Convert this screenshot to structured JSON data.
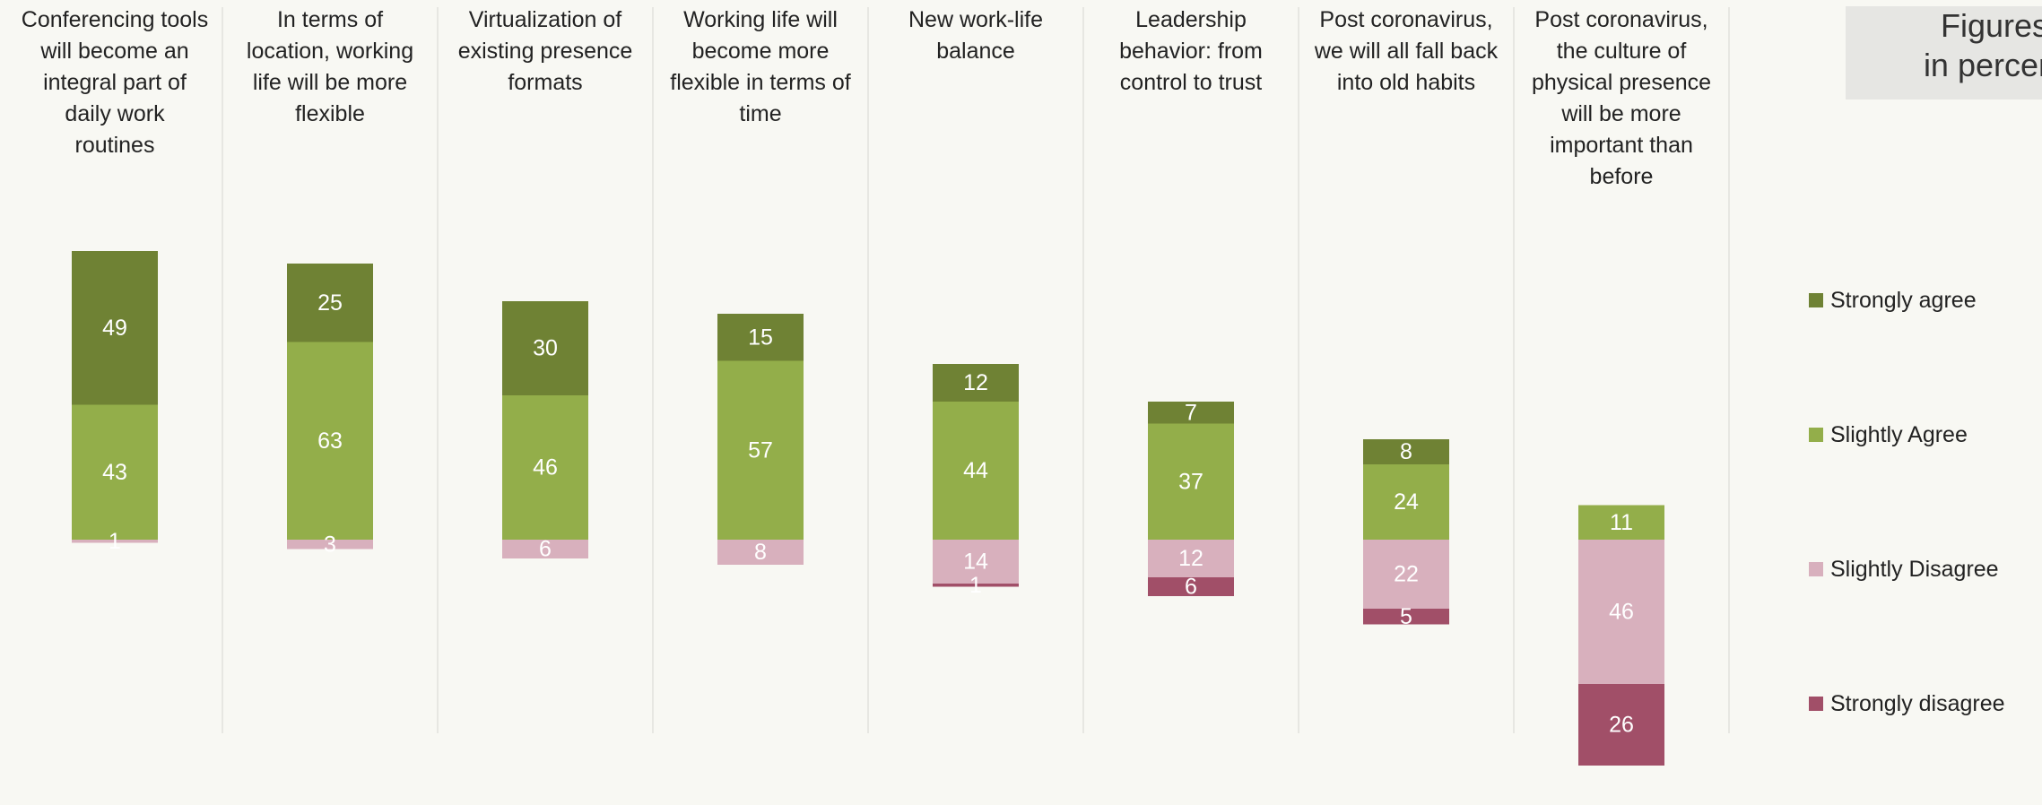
{
  "chart_data": {
    "type": "bar",
    "stacked": "diverging",
    "categories": [
      "Conferencing tools\nwill become an\nintegral part of\ndaily work\nroutines",
      "In terms of\nlocation, working\nlife will be more\nflexible",
      "Virtualization of\nexisting presence\nformats",
      "Working life will\nbecome more\nflexible in terms of\ntime",
      "New work-life\nbalance",
      "Leadership\nbehavior: from\ncontrol to trust",
      "Post coronavirus,\nwe will all fall back\ninto old habits",
      "Post coronavirus,\nthe culture of\nphysical presence\nwill be more\nimportant than\nbefore"
    ],
    "series": [
      {
        "name": "Strongly agree",
        "color": "#6f8234",
        "values": [
          49,
          25,
          30,
          15,
          12,
          7,
          8,
          0
        ]
      },
      {
        "name": "Slightly Agree",
        "color": "#93ae4a",
        "values": [
          43,
          63,
          46,
          57,
          44,
          37,
          24,
          11
        ]
      },
      {
        "name": "Slightly Disagree",
        "color": "#d8b0bd",
        "values": [
          1,
          3,
          6,
          8,
          14,
          12,
          22,
          46
        ]
      },
      {
        "name": "Strongly disagree",
        "color": "#a14f68",
        "values": [
          0,
          0,
          0,
          0,
          1,
          6,
          5,
          26
        ]
      }
    ],
    "units_note": "Figures\nin percent",
    "legend": "right",
    "grid": false
  }
}
